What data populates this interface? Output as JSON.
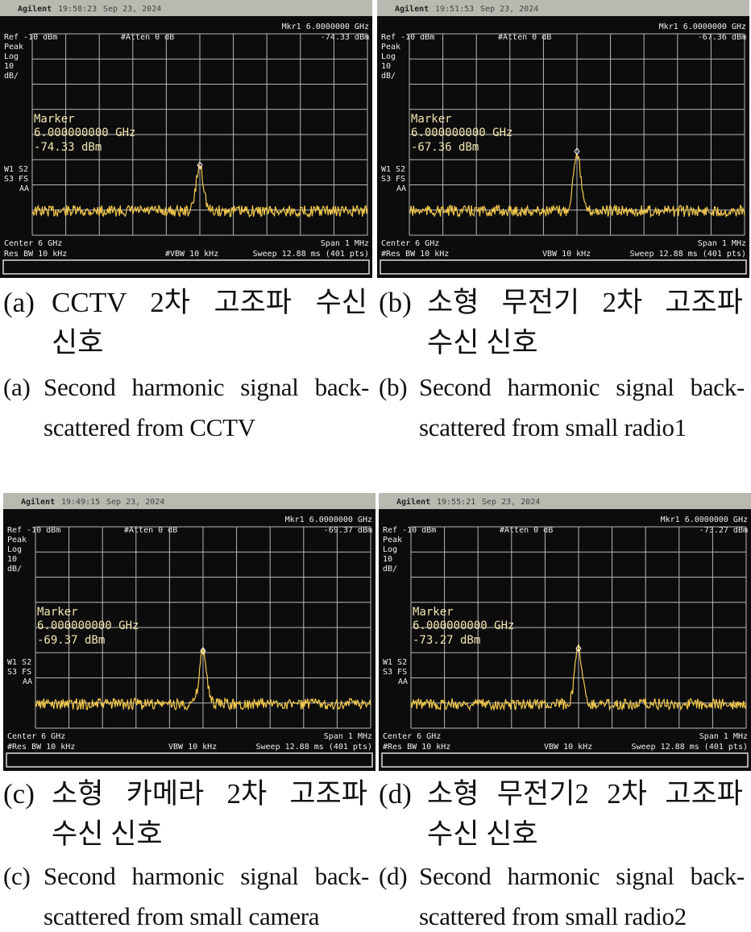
{
  "panels": [
    {
      "screen": {
        "brand": "Agilent",
        "time": "19:58:23",
        "date": "Sep 23, 2024",
        "ref": "Ref -10 dBm",
        "atten": "#Atten 0 dB",
        "mkr_freq": "Mkr1 6.0000000 GHz",
        "mkr_level": "-74.33 dBm",
        "detector": "Peak",
        "scale_type": "Log",
        "scale": "10",
        "scale_unit": "dB/",
        "marker_title": "Marker",
        "marker_freq": "6.000000000 GHz",
        "marker_level": "-74.33 dBm",
        "trace_mode": [
          "W1 S2",
          "S3 FS",
          "AA"
        ],
        "center": "Center 6 GHz",
        "span": "Span 1 MHz",
        "rbw": "Res BW 10 kHz",
        "vbw": "#VBW 10 kHz",
        "sweep": "Sweep 12.88 ms (401 pts)"
      },
      "caption_ko": {
        "label": "(a)",
        "lines": [
          "CCTV 2차 고조파 수신",
          "신호"
        ]
      },
      "caption_en": {
        "label": "(a)",
        "lines": [
          "Second harmonic signal back-",
          "scattered from CCTV"
        ]
      }
    },
    {
      "screen": {
        "brand": "Agilent",
        "time": "19:51:53",
        "date": "Sep 23, 2024",
        "ref": "Ref -10 dBm",
        "atten": "#Atten 0 dB",
        "mkr_freq": "Mkr1 6.0000000 GHz",
        "mkr_level": "-67.36 dBm",
        "detector": "Peak",
        "scale_type": "Log",
        "scale": "10",
        "scale_unit": "dB/",
        "marker_title": "Marker",
        "marker_freq": "6.000000000 GHz",
        "marker_level": "-67.36 dBm",
        "trace_mode": [
          "W1 S2",
          "S3 FS",
          "AA"
        ],
        "center": "Center 6 GHz",
        "span": "Span 1 MHz",
        "rbw": "#Res BW 10 kHz",
        "vbw": "VBW 10 kHz",
        "sweep": "Sweep 12.88 ms (401 pts)"
      },
      "caption_ko": {
        "label": "(b)",
        "lines": [
          "소형 무전기 2차 고조파",
          "수신 신호"
        ]
      },
      "caption_en": {
        "label": "(b)",
        "lines": [
          "Second harmonic signal back-",
          "scattered from small radio1"
        ]
      }
    },
    {
      "screen": {
        "brand": "Agilent",
        "time": "19:49:15",
        "date": "Sep 23, 2024",
        "ref": "Ref -10 dBm",
        "atten": "#Atten 0 dB",
        "mkr_freq": "Mkr1 6.0000000 GHz",
        "mkr_level": "-69.37 dBm",
        "detector": "Peak",
        "scale_type": "Log",
        "scale": "10",
        "scale_unit": "dB/",
        "marker_title": "Marker",
        "marker_freq": "6.000000000 GHz",
        "marker_level": "-69.37 dBm",
        "trace_mode": [
          "W1 S2",
          "S3 FS",
          "AA"
        ],
        "center": "Center 6 GHz",
        "span": "Span 1 MHz",
        "rbw": "#Res BW 10 kHz",
        "vbw": "VBW 10 kHz",
        "sweep": "Sweep 12.88 ms (401 pts)"
      },
      "caption_ko": {
        "label": "(c)",
        "lines": [
          "소형 카메라 2차 고조파",
          "수신 신호"
        ]
      },
      "caption_en": {
        "label": "(c)",
        "lines": [
          "Second harmonic signal back-",
          "scattered from small camera"
        ]
      }
    },
    {
      "screen": {
        "brand": "Agilent",
        "time": "19:55:21",
        "date": "Sep 23, 2024",
        "ref": "Ref -10 dBm",
        "atten": "#Atten 0 dB",
        "mkr_freq": "Mkr1 6.0000000 GHz",
        "mkr_level": "-73.27 dBm",
        "detector": "Peak",
        "scale_type": "Log",
        "scale": "10",
        "scale_unit": "dB/",
        "marker_title": "Marker",
        "marker_freq": "6.000000000 GHz",
        "marker_level": "-73.27 dBm",
        "trace_mode": [
          "W1 S2",
          "S3 FS",
          "AA"
        ],
        "center": "Center 6 GHz",
        "span": "Span 1 MHz",
        "rbw": "#Res BW 10 kHz",
        "vbw": "VBW 10 kHz",
        "sweep": "Sweep 12.88 ms (401 pts)"
      },
      "caption_ko": {
        "label": "(d)",
        "lines": [
          "소형 무전기2 2차 고조파",
          "수신 신호"
        ]
      },
      "caption_en": {
        "label": "(d)",
        "lines": [
          "Second harmonic signal back-",
          "scattered from small radio2"
        ]
      }
    }
  ]
}
